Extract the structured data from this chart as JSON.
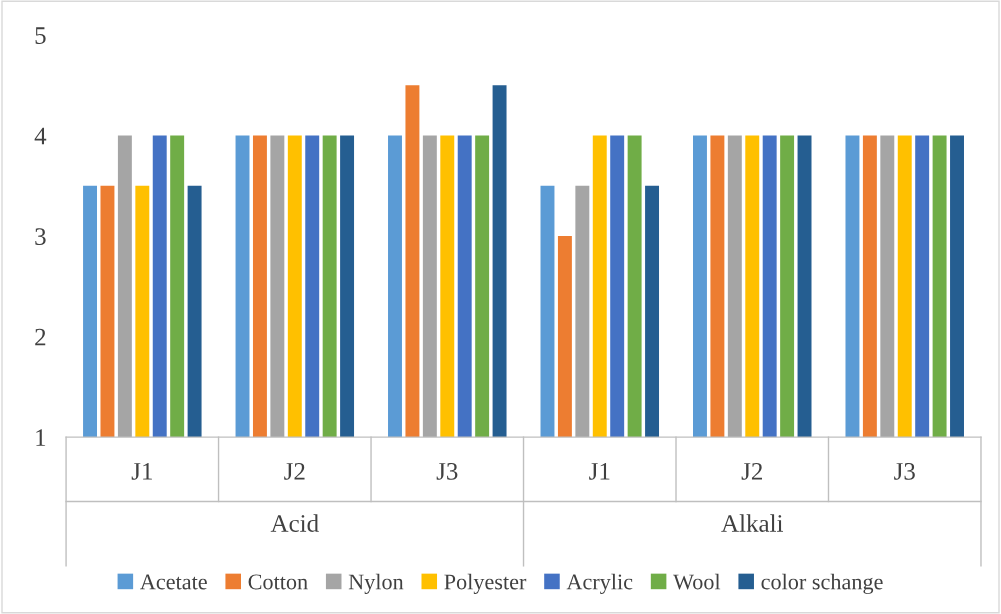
{
  "chart_data": {
    "type": "bar",
    "categories": [
      "J1",
      "J2",
      "J3",
      "J1",
      "J2",
      "J3"
    ],
    "annotations": [
      "Acid",
      "Alkali"
    ],
    "series": [
      {
        "name": "Acetate",
        "color": "#5b9bd5",
        "values": [
          3.5,
          4,
          4,
          3.5,
          4,
          4
        ]
      },
      {
        "name": "Cotton",
        "color": "#ed7d31",
        "values": [
          3.5,
          4,
          4.5,
          3,
          4,
          4
        ]
      },
      {
        "name": "Nylon",
        "color": "#a5a5a5",
        "values": [
          4,
          4,
          4,
          3.5,
          4,
          4
        ]
      },
      {
        "name": "Polyester",
        "color": "#ffc000",
        "values": [
          3.5,
          4,
          4,
          4,
          4,
          4
        ]
      },
      {
        "name": "Acrylic",
        "color": "#4472c4",
        "values": [
          4,
          4,
          4,
          4,
          4,
          4
        ]
      },
      {
        "name": "Wool",
        "color": "#70ad47",
        "values": [
          4,
          4,
          4,
          4,
          4,
          4
        ]
      },
      {
        "name": "color schange",
        "color": "#255e91",
        "values": [
          3.5,
          4,
          4.5,
          3.5,
          4,
          4
        ]
      }
    ],
    "ylim": [
      1,
      5
    ],
    "yticks": [
      1,
      2,
      3,
      4,
      5
    ],
    "grid": false,
    "legend": "bottom"
  }
}
